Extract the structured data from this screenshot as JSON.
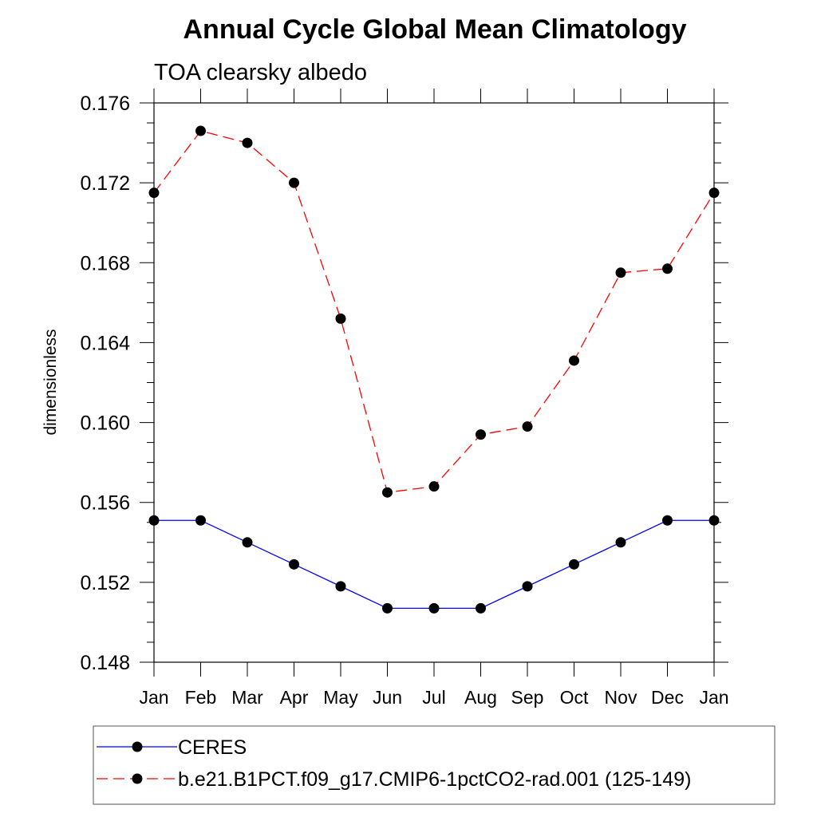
{
  "chart_data": {
    "type": "line",
    "title": "Annual Cycle Global Mean Climatology",
    "subtitle": "TOA clearsky albedo",
    "xlabel": "",
    "ylabel": "dimensionless",
    "categories": [
      "Jan",
      "Feb",
      "Mar",
      "Apr",
      "May",
      "Jun",
      "Jul",
      "Aug",
      "Sep",
      "Oct",
      "Nov",
      "Dec",
      "Jan"
    ],
    "ylim": [
      0.148,
      0.176
    ],
    "yticks": [
      "0.148",
      "0.152",
      "0.156",
      "0.160",
      "0.164",
      "0.168",
      "0.172",
      "0.176"
    ],
    "grid": false,
    "legend_position": "bottom",
    "series": [
      {
        "name": "CERES",
        "color": "#0000ff",
        "line_style": "solid",
        "marker": "circle",
        "values": [
          0.1551,
          0.1551,
          0.154,
          0.1529,
          0.1518,
          0.1507,
          0.1507,
          0.1507,
          0.1518,
          0.1529,
          0.154,
          0.1551,
          0.1551
        ]
      },
      {
        "name": "b.e21.B1PCT.f09_g17.CMIP6-1pctCO2-rad.001 (125-149)",
        "color": "#ff0000",
        "line_style": "dashed",
        "marker": "circle",
        "values": [
          0.1715,
          0.1746,
          0.174,
          0.172,
          0.1652,
          0.1565,
          0.1568,
          0.1594,
          0.1598,
          0.1631,
          0.1675,
          0.1677,
          0.1715
        ]
      }
    ]
  }
}
